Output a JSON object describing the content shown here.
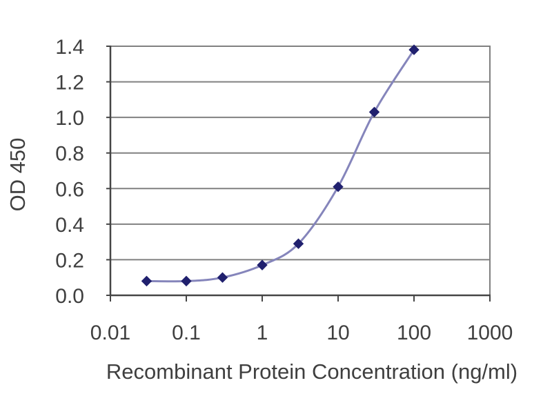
{
  "chart_data": {
    "type": "line",
    "title": "",
    "xlabel": "Recombinant Protein Concentration (ng/ml)",
    "ylabel": "OD 450",
    "x_scale": "log",
    "xlim": [
      0.01,
      1000
    ],
    "ylim": [
      0,
      1.4
    ],
    "x_tick_values": [
      0.01,
      0.1,
      1,
      10,
      100,
      1000
    ],
    "x_tick_labels": [
      "0.01",
      "0.1",
      "1",
      "10",
      "100",
      "1000"
    ],
    "y_tick_values": [
      0.0,
      0.2,
      0.4,
      0.6,
      0.8,
      1.0,
      1.2,
      1.4
    ],
    "y_tick_labels": [
      "0.0",
      "0.2",
      "0.4",
      "0.6",
      "0.8",
      "1.0",
      "1.2",
      "1.4"
    ],
    "grid": "horizontal-only",
    "legend": "none",
    "series": [
      {
        "name": "OD 450 standard curve",
        "marker": "diamond",
        "smooth": true,
        "x": [
          0.03,
          0.1,
          0.3,
          1,
          3,
          10,
          30,
          100
        ],
        "y": [
          0.08,
          0.08,
          0.1,
          0.17,
          0.29,
          0.61,
          1.03,
          1.38
        ]
      }
    ],
    "colors": {
      "line": "#8585bb",
      "marker": "#20206e",
      "gridline": "#808080",
      "plot_border": "#808080",
      "axis": "#454545",
      "text": "#3f3f3f",
      "background": "#ffffff"
    }
  }
}
